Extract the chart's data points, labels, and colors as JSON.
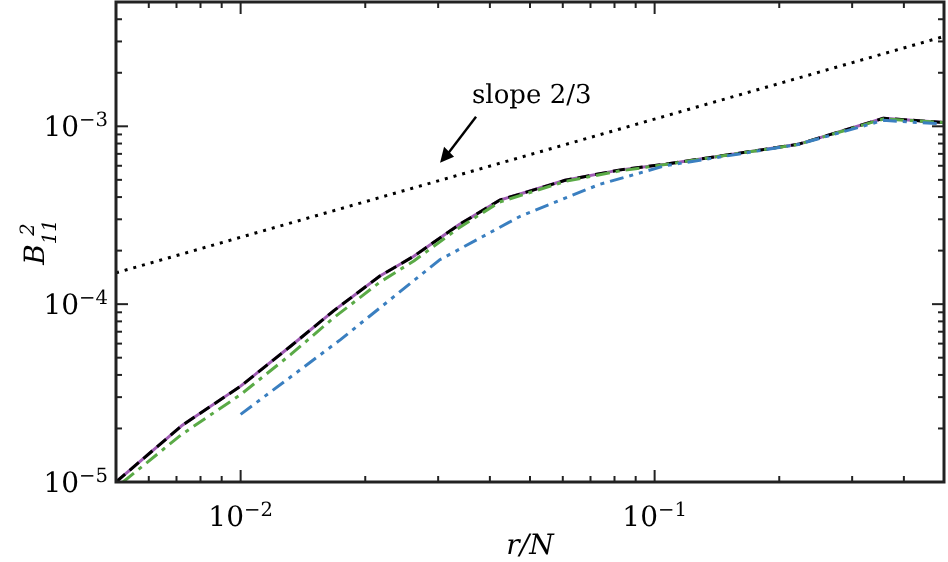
{
  "chart_data": {
    "type": "line",
    "xlabel": "r/N",
    "ylabel": "B$_{11}$$^{2}$",
    "log": "xy",
    "grid": false,
    "xlim": [
      0.005,
      0.5
    ],
    "ylim": [
      1e-05,
      0.005
    ],
    "xticks": [
      {
        "value": 0.006,
        "label": null
      },
      {
        "value": 0.007,
        "label": null
      },
      {
        "value": 0.008,
        "label": null
      },
      {
        "value": 0.009,
        "label": null
      },
      {
        "value": 0.01,
        "label": "10$^{−2}$"
      },
      {
        "value": 0.02,
        "label": null
      },
      {
        "value": 0.03,
        "label": null
      },
      {
        "value": 0.04,
        "label": null
      },
      {
        "value": 0.05,
        "label": null
      },
      {
        "value": 0.06,
        "label": null
      },
      {
        "value": 0.07,
        "label": null
      },
      {
        "value": 0.08,
        "label": null
      },
      {
        "value": 0.09,
        "label": null
      },
      {
        "value": 0.1,
        "label": "10$^{−1}$"
      },
      {
        "value": 0.2,
        "label": null
      },
      {
        "value": 0.3,
        "label": null
      },
      {
        "value": 0.4,
        "label": null
      }
    ],
    "yticks": [
      {
        "value": 1e-05,
        "label": "10$^{−5}$"
      },
      {
        "value": 2e-05,
        "label": null
      },
      {
        "value": 3e-05,
        "label": null
      },
      {
        "value": 4e-05,
        "label": null
      },
      {
        "value": 5e-05,
        "label": null
      },
      {
        "value": 6e-05,
        "label": null
      },
      {
        "value": 7e-05,
        "label": null
      },
      {
        "value": 8e-05,
        "label": null
      },
      {
        "value": 9e-05,
        "label": null
      },
      {
        "value": 0.0001,
        "label": "10$^{−4}$"
      },
      {
        "value": 0.0002,
        "label": null
      },
      {
        "value": 0.0003,
        "label": null
      },
      {
        "value": 0.0004,
        "label": null
      },
      {
        "value": 0.0005,
        "label": null
      },
      {
        "value": 0.0006,
        "label": null
      },
      {
        "value": 0.0007,
        "label": null
      },
      {
        "value": 0.0008,
        "label": null
      },
      {
        "value": 0.0009,
        "label": null
      },
      {
        "value": 0.001,
        "label": "10$^{−3}$"
      },
      {
        "value": 0.002,
        "label": null
      },
      {
        "value": 0.003,
        "label": null
      },
      {
        "value": 0.004,
        "label": null
      }
    ],
    "annotations": [
      "slope 2/3"
    ],
    "series": [
      {
        "color": "#000000",
        "line_style": "dotted",
        "x": [
          0.005,
          0.5
        ],
        "values": [
          0.00015,
          0.0032
        ]
      },
      {
        "color": "#a05cb4",
        "line_style": "solid",
        "x": [
          0.005,
          0.0072,
          0.01,
          0.0132,
          0.0168,
          0.0217,
          0.0262,
          0.0338,
          0.0422,
          0.0608,
          0.0819,
          0.106,
          0.222,
          0.357,
          0.5
        ],
        "values": [
          1e-05,
          2.07e-05,
          3.46e-05,
          5.8e-05,
          9.2e-05,
          0.000144,
          0.000186,
          0.000281,
          0.000384,
          0.000497,
          0.000567,
          0.000612,
          0.000792,
          0.00111,
          0.00105
        ]
      },
      {
        "color": "#000000",
        "line_style": "dashed",
        "x": [
          0.005,
          0.0072,
          0.01,
          0.0132,
          0.0168,
          0.0217,
          0.0262,
          0.0338,
          0.0422,
          0.0608,
          0.0819,
          0.106,
          0.222,
          0.357,
          0.5
        ],
        "values": [
          1e-05,
          2.07e-05,
          3.46e-05,
          5.8e-05,
          9.2e-05,
          0.000144,
          0.000186,
          0.000281,
          0.000384,
          0.000497,
          0.000567,
          0.000612,
          0.000792,
          0.00111,
          0.00105
        ]
      },
      {
        "color": "#5aaa46",
        "line_style": "dashdot",
        "x": [
          0.0052,
          0.0072,
          0.01,
          0.0132,
          0.0168,
          0.0217,
          0.0262,
          0.0338,
          0.0422,
          0.0608,
          0.0819,
          0.106,
          0.222,
          0.357,
          0.5
        ],
        "values": [
          1e-05,
          1.85e-05,
          3.1e-05,
          5.2e-05,
          8.4e-05,
          0.000133,
          0.000175,
          0.00027,
          0.000375,
          0.00049,
          0.00056,
          0.00061,
          0.00079,
          0.0011,
          0.00105
        ]
      },
      {
        "color": "#3a7fc0",
        "line_style": "dashdotdot",
        "x": [
          0.01,
          0.0174,
          0.0302,
          0.0471,
          0.0733,
          0.106,
          0.222,
          0.357,
          0.5
        ],
        "values": [
          2.4e-05,
          6.3e-05,
          0.000177,
          0.00031,
          0.00047,
          0.0006,
          0.00079,
          0.00108,
          0.00103
        ]
      }
    ]
  }
}
